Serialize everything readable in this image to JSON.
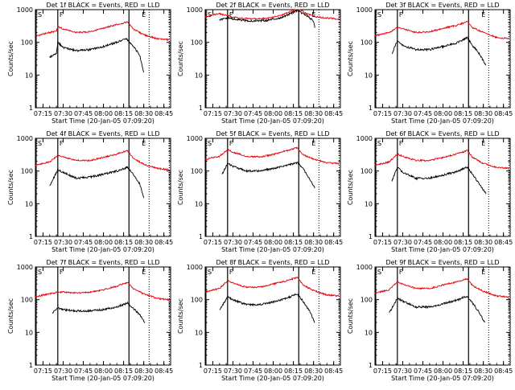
{
  "common": {
    "ylabel": "Counts/sec",
    "xlabel": "Start Time (20-Jan-05 07:09:20)",
    "x_ticks": [
      "07:15",
      "07:30",
      "07:45",
      "08:00",
      "08:15",
      "08:30",
      "08:45"
    ],
    "y_ticks": [
      "1",
      "10",
      "100",
      "1000"
    ],
    "marker_labels": {
      "s": "S",
      "f": "F",
      "e": "E"
    },
    "colors": {
      "events": "#000000",
      "lld": "#e8000b",
      "axes": "#000000"
    }
  },
  "chart_data": [
    {
      "type": "line",
      "title": "Det 1f BLACK = Events, RED = LLD",
      "xlim": [
        "07:09:20",
        "08:50"
      ],
      "ylim": [
        1,
        1000
      ],
      "yscale": "log",
      "markers": {
        "s": "07:09:20",
        "f": "07:26",
        "e": "08:19",
        "dotted": [
          "08:34",
          "08:49"
        ]
      },
      "series": [
        {
          "color": "red",
          "x": [
            "07:09",
            "07:15",
            "07:20",
            "07:25",
            "07:26",
            "07:30",
            "07:40",
            "07:50",
            "08:00",
            "08:10",
            "08:18",
            "08:22",
            "08:30",
            "08:40",
            "08:49"
          ],
          "values": [
            150,
            180,
            200,
            220,
            300,
            260,
            200,
            210,
            270,
            350,
            420,
            260,
            170,
            130,
            120
          ]
        },
        {
          "color": "black",
          "x": [
            "07:20",
            "07:25",
            "07:26",
            "07:30",
            "07:40",
            "07:50",
            "08:00",
            "08:10",
            "08:17",
            "08:22",
            "08:27",
            "08:30"
          ],
          "values": [
            35,
            45,
            100,
            70,
            55,
            60,
            75,
            100,
            130,
            80,
            40,
            12
          ]
        }
      ]
    },
    {
      "type": "line",
      "title": "Det 2f BLACK = Events, RED = LLD",
      "xlim": [
        "07:09:20",
        "08:50"
      ],
      "ylim": [
        1,
        1000
      ],
      "yscale": "log",
      "markers": {
        "s": "07:09:20",
        "f": "07:26",
        "e": "08:19",
        "dotted": [
          "08:34",
          "08:49"
        ]
      },
      "series": [
        {
          "color": "red",
          "x": [
            "07:09",
            "07:15",
            "07:20",
            "07:26",
            "07:35",
            "07:45",
            "07:55",
            "08:05",
            "08:12",
            "08:18",
            "08:25",
            "08:32",
            "08:40",
            "08:49"
          ],
          "values": [
            600,
            700,
            750,
            650,
            550,
            520,
            540,
            650,
            850,
            1100,
            750,
            600,
            550,
            520
          ]
        },
        {
          "color": "black",
          "x": [
            "07:20",
            "07:26",
            "07:35",
            "07:45",
            "07:55",
            "08:05",
            "08:12",
            "08:18",
            "08:25",
            "08:30",
            "08:31"
          ],
          "values": [
            480,
            560,
            480,
            450,
            470,
            560,
            730,
            950,
            650,
            450,
            280
          ]
        }
      ]
    },
    {
      "type": "line",
      "title": "Det 3f BLACK = Events, RED = LLD",
      "xlim": [
        "07:09:20",
        "08:50"
      ],
      "ylim": [
        1,
        1000
      ],
      "yscale": "log",
      "markers": {
        "s": "07:09:20",
        "f": "07:26",
        "e": "08:19",
        "dotted": [
          "08:34",
          "08:49"
        ]
      },
      "series": [
        {
          "color": "red",
          "x": [
            "07:09",
            "07:15",
            "07:20",
            "07:26",
            "07:30",
            "07:40",
            "07:50",
            "08:00",
            "08:10",
            "08:18",
            "08:22",
            "08:30",
            "08:40",
            "08:49"
          ],
          "values": [
            160,
            180,
            200,
            280,
            260,
            200,
            210,
            270,
            330,
            430,
            280,
            200,
            140,
            130
          ]
        },
        {
          "color": "black",
          "x": [
            "07:22",
            "07:26",
            "07:30",
            "07:40",
            "07:50",
            "08:00",
            "08:10",
            "08:18",
            "08:22",
            "08:27",
            "08:32"
          ],
          "values": [
            45,
            110,
            80,
            60,
            60,
            75,
            95,
            140,
            80,
            45,
            20
          ]
        }
      ]
    },
    {
      "type": "line",
      "title": "Det 4f BLACK = Events, RED = LLD",
      "xlim": [
        "07:09:20",
        "08:50"
      ],
      "ylim": [
        1,
        1000
      ],
      "yscale": "log",
      "markers": {
        "s": "07:09:20",
        "f": "07:26",
        "e": "08:19",
        "dotted": [
          "08:34",
          "08:49"
        ]
      },
      "series": [
        {
          "color": "red",
          "x": [
            "07:09",
            "07:15",
            "07:20",
            "07:26",
            "07:30",
            "07:40",
            "07:50",
            "08:00",
            "08:10",
            "08:18",
            "08:22",
            "08:30",
            "08:40",
            "08:49"
          ],
          "values": [
            150,
            170,
            190,
            300,
            270,
            210,
            210,
            260,
            330,
            420,
            250,
            160,
            120,
            110
          ]
        },
        {
          "color": "black",
          "x": [
            "07:20",
            "07:26",
            "07:30",
            "07:40",
            "07:50",
            "08:00",
            "08:10",
            "08:18",
            "08:22",
            "08:27",
            "08:30"
          ],
          "values": [
            35,
            110,
            90,
            60,
            65,
            80,
            100,
            130,
            80,
            40,
            15
          ]
        }
      ]
    },
    {
      "type": "line",
      "title": "Det 5f BLACK = Events, RED = LLD",
      "xlim": [
        "07:09:20",
        "08:50"
      ],
      "ylim": [
        1,
        1000
      ],
      "yscale": "log",
      "markers": {
        "s": "07:09:20",
        "f": "07:26",
        "e": "08:19",
        "dotted": [
          "08:34",
          "08:49"
        ]
      },
      "series": [
        {
          "color": "red",
          "x": [
            "07:09",
            "07:15",
            "07:20",
            "07:26",
            "07:30",
            "07:40",
            "07:50",
            "08:00",
            "08:10",
            "08:18",
            "08:22",
            "08:30",
            "08:40",
            "08:49"
          ],
          "values": [
            220,
            260,
            280,
            450,
            380,
            280,
            270,
            320,
            420,
            520,
            320,
            230,
            180,
            170
          ]
        },
        {
          "color": "black",
          "x": [
            "07:22",
            "07:26",
            "07:30",
            "07:40",
            "07:50",
            "08:00",
            "08:10",
            "08:18",
            "08:22",
            "08:27",
            "08:31"
          ],
          "values": [
            80,
            170,
            140,
            100,
            100,
            120,
            150,
            180,
            120,
            60,
            30
          ]
        }
      ]
    },
    {
      "type": "line",
      "title": "Det 6f BLACK = Events, RED = LLD",
      "xlim": [
        "07:09:20",
        "08:50"
      ],
      "ylim": [
        1,
        1000
      ],
      "yscale": "log",
      "markers": {
        "s": "07:09:20",
        "f": "07:26",
        "e": "08:19",
        "dotted": [
          "08:34",
          "08:49"
        ]
      },
      "series": [
        {
          "color": "red",
          "x": [
            "07:09",
            "07:15",
            "07:20",
            "07:26",
            "07:30",
            "07:40",
            "07:50",
            "08:00",
            "08:10",
            "08:18",
            "08:22",
            "08:30",
            "08:40",
            "08:49"
          ],
          "values": [
            150,
            170,
            190,
            330,
            280,
            210,
            210,
            260,
            330,
            420,
            260,
            170,
            130,
            120
          ]
        },
        {
          "color": "black",
          "x": [
            "07:22",
            "07:26",
            "07:30",
            "07:40",
            "07:50",
            "08:00",
            "08:10",
            "08:18",
            "08:22",
            "08:27",
            "08:32"
          ],
          "values": [
            50,
            130,
            90,
            60,
            60,
            75,
            95,
            130,
            80,
            40,
            20
          ]
        }
      ]
    },
    {
      "type": "line",
      "title": "Det 7f BLACK = Events, RED = LLD",
      "xlim": [
        "07:09:20",
        "08:50"
      ],
      "ylim": [
        1,
        1000
      ],
      "yscale": "log",
      "markers": {
        "s": "07:09:20",
        "f": "07:26",
        "e": "08:19",
        "dotted": [
          "08:34",
          "08:49"
        ]
      },
      "series": [
        {
          "color": "red",
          "x": [
            "07:09",
            "07:15",
            "07:20",
            "07:26",
            "07:30",
            "07:40",
            "07:50",
            "08:00",
            "08:10",
            "08:18",
            "08:22",
            "08:30",
            "08:40",
            "08:49"
          ],
          "values": [
            120,
            140,
            150,
            170,
            170,
            160,
            170,
            200,
            260,
            340,
            220,
            150,
            110,
            100
          ]
        },
        {
          "color": "black",
          "x": [
            "07:22",
            "07:26",
            "07:30",
            "07:40",
            "07:50",
            "08:00",
            "08:10",
            "08:18",
            "08:22",
            "08:27",
            "08:31"
          ],
          "values": [
            40,
            55,
            50,
            45,
            45,
            50,
            60,
            80,
            55,
            35,
            20
          ]
        }
      ]
    },
    {
      "type": "line",
      "title": "Det 8f BLACK = Events, RED = LLD",
      "xlim": [
        "07:09:20",
        "08:50"
      ],
      "ylim": [
        1,
        1000
      ],
      "yscale": "log",
      "markers": {
        "s": "07:09:20",
        "f": "07:26",
        "e": "08:19",
        "dotted": [
          "08:34",
          "08:49"
        ]
      },
      "series": [
        {
          "color": "red",
          "x": [
            "07:09",
            "07:15",
            "07:20",
            "07:26",
            "07:30",
            "07:40",
            "07:50",
            "08:00",
            "08:10",
            "08:18",
            "08:22",
            "08:30",
            "08:40",
            "08:49"
          ],
          "values": [
            170,
            200,
            220,
            380,
            320,
            240,
            240,
            300,
            380,
            480,
            290,
            190,
            140,
            130
          ]
        },
        {
          "color": "black",
          "x": [
            "07:20",
            "07:26",
            "07:30",
            "07:40",
            "07:50",
            "08:00",
            "08:10",
            "08:18",
            "08:22",
            "08:27",
            "08:31"
          ],
          "values": [
            50,
            120,
            100,
            70,
            70,
            85,
            110,
            150,
            90,
            45,
            20
          ]
        }
      ]
    },
    {
      "type": "line",
      "title": "Det 9f BLACK = Events, RED = LLD",
      "xlim": [
        "07:09:20",
        "08:50"
      ],
      "ylim": [
        1,
        1000
      ],
      "yscale": "log",
      "markers": {
        "s": "07:09:20",
        "f": "07:26",
        "e": "08:19",
        "dotted": [
          "08:34",
          "08:49"
        ]
      },
      "series": [
        {
          "color": "red",
          "x": [
            "07:09",
            "07:15",
            "07:20",
            "07:26",
            "07:30",
            "07:40",
            "07:50",
            "08:00",
            "08:10",
            "08:18",
            "08:22",
            "08:30",
            "08:40",
            "08:49"
          ],
          "values": [
            160,
            180,
            200,
            350,
            300,
            220,
            220,
            280,
            350,
            440,
            270,
            180,
            130,
            120
          ]
        },
        {
          "color": "black",
          "x": [
            "07:20",
            "07:26",
            "07:30",
            "07:40",
            "07:50",
            "08:00",
            "08:10",
            "08:18",
            "08:22",
            "08:27",
            "08:31"
          ],
          "values": [
            40,
            110,
            90,
            60,
            60,
            75,
            95,
            130,
            80,
            40,
            20
          ]
        }
      ]
    }
  ]
}
